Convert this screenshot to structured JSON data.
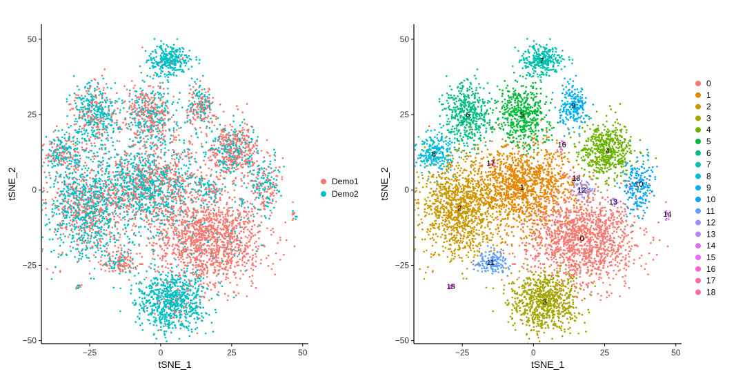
{
  "colors": {
    "Demo1": "#F8766D",
    "Demo2": "#00BFC4",
    "clusters": [
      "#F8766D",
      "#E58700",
      "#C99800",
      "#A3A500",
      "#6BB100",
      "#00BA38",
      "#00BF7D",
      "#00C0AF",
      "#00BCD8",
      "#00B0F6",
      "#00A5FF",
      "#619CFF",
      "#9590FF",
      "#B983FF",
      "#D772EC",
      "#E76BF3",
      "#FD61D1",
      "#FF67A4",
      "#FF6C91"
    ]
  },
  "chart_data": [
    {
      "type": "scatter",
      "title": "",
      "xlabel": "tSNE_1",
      "ylabel": "tSNE_2",
      "xlim": [
        -42,
        52
      ],
      "ylim": [
        -51,
        55
      ],
      "x_ticks": [
        -25,
        0,
        25,
        50
      ],
      "y_ticks": [
        -50,
        -25,
        0,
        25,
        50
      ],
      "x_tick_labels": [
        "−25",
        "0",
        "25",
        "50"
      ],
      "y_tick_labels": [
        "−50",
        "−25",
        "0",
        "25",
        "50"
      ],
      "grid": false,
      "legend": "right",
      "color_by": "sample",
      "series": [
        {
          "name": "Demo1",
          "color": "#F8766D"
        },
        {
          "name": "Demo2",
          "color": "#00BFC4"
        }
      ]
    },
    {
      "type": "scatter",
      "title": "",
      "xlabel": "tSNE_1",
      "ylabel": "tSNE_2",
      "xlim": [
        -42,
        52
      ],
      "ylim": [
        -51,
        55
      ],
      "x_ticks": [
        -25,
        0,
        25,
        50
      ],
      "y_ticks": [
        -50,
        -25,
        0,
        25,
        50
      ],
      "x_tick_labels": [
        "−25",
        "0",
        "25",
        "50"
      ],
      "y_tick_labels": [
        "−50",
        "−25",
        "0",
        "25",
        "50"
      ],
      "grid": false,
      "legend": "right",
      "color_by": "cluster",
      "series": [
        {
          "name": "0"
        },
        {
          "name": "1"
        },
        {
          "name": "2"
        },
        {
          "name": "3"
        },
        {
          "name": "4"
        },
        {
          "name": "5"
        },
        {
          "name": "6"
        },
        {
          "name": "7"
        },
        {
          "name": "8"
        },
        {
          "name": "9"
        },
        {
          "name": "10"
        },
        {
          "name": "11"
        },
        {
          "name": "12"
        },
        {
          "name": "13"
        },
        {
          "name": "14"
        },
        {
          "name": "15"
        },
        {
          "name": "16"
        },
        {
          "name": "17"
        },
        {
          "name": "18"
        }
      ],
      "clusters": [
        {
          "id": "0",
          "x": 17,
          "y": -16,
          "sx": 9.5,
          "sy": 7.5,
          "n": 1400,
          "demo1": 0.94
        },
        {
          "id": "1",
          "x": -4,
          "y": 1,
          "sx": 9,
          "sy": 7,
          "n": 1300,
          "demo1": 0.45
        },
        {
          "id": "2",
          "x": -26,
          "y": -6,
          "sx": 7,
          "sy": 8,
          "n": 1100,
          "demo1": 0.4
        },
        {
          "id": "3",
          "x": 4,
          "y": -37,
          "sx": 6,
          "sy": 5,
          "n": 800,
          "demo1": 0.08
        },
        {
          "id": "4",
          "x": 26,
          "y": 13,
          "sx": 4.5,
          "sy": 4.5,
          "n": 550,
          "demo1": 0.62
        },
        {
          "id": "5",
          "x": -4,
          "y": 25,
          "sx": 4.5,
          "sy": 5,
          "n": 500,
          "demo1": 0.5
        },
        {
          "id": "6",
          "x": -23,
          "y": 25,
          "sx": 4,
          "sy": 5.5,
          "n": 450,
          "demo1": 0.35
        },
        {
          "id": "7",
          "x": 3,
          "y": 43,
          "sx": 3.5,
          "sy": 2.5,
          "n": 300,
          "demo1": 0.04
        },
        {
          "id": "8",
          "x": -35,
          "y": 12,
          "sx": 3.5,
          "sy": 3.5,
          "n": 250,
          "demo1": 0.42
        },
        {
          "id": "9",
          "x": 14,
          "y": 28,
          "sx": 2.5,
          "sy": 3.2,
          "n": 220,
          "demo1": 0.5
        },
        {
          "id": "10",
          "x": 37,
          "y": 2,
          "sx": 2.5,
          "sy": 5,
          "n": 200,
          "demo1": 0.45
        },
        {
          "id": "11",
          "x": -15,
          "y": -24,
          "sx": 3,
          "sy": 2,
          "n": 150,
          "demo1": 0.7
        },
        {
          "id": "12",
          "x": 17,
          "y": 0,
          "sx": 1.6,
          "sy": 1.6,
          "n": 60,
          "demo1": 0.3
        },
        {
          "id": "13",
          "x": 28,
          "y": -4,
          "sx": 0.7,
          "sy": 0.7,
          "n": 12,
          "demo1": 0.5
        },
        {
          "id": "14",
          "x": 47,
          "y": -8,
          "sx": 0.8,
          "sy": 0.8,
          "n": 12,
          "demo1": 0.5
        },
        {
          "id": "15",
          "x": -29,
          "y": -32,
          "sx": 0.7,
          "sy": 0.6,
          "n": 10,
          "demo1": 0.5
        },
        {
          "id": "16",
          "x": 10,
          "y": 15,
          "sx": 0.6,
          "sy": 1,
          "n": 10,
          "demo1": 0.5
        },
        {
          "id": "17",
          "x": -15,
          "y": 9,
          "sx": 0.7,
          "sy": 0.6,
          "n": 10,
          "demo1": 0.5
        },
        {
          "id": "18",
          "x": 15,
          "y": 4,
          "sx": 1,
          "sy": 0.8,
          "n": 10,
          "demo1": 0.5
        }
      ]
    }
  ]
}
